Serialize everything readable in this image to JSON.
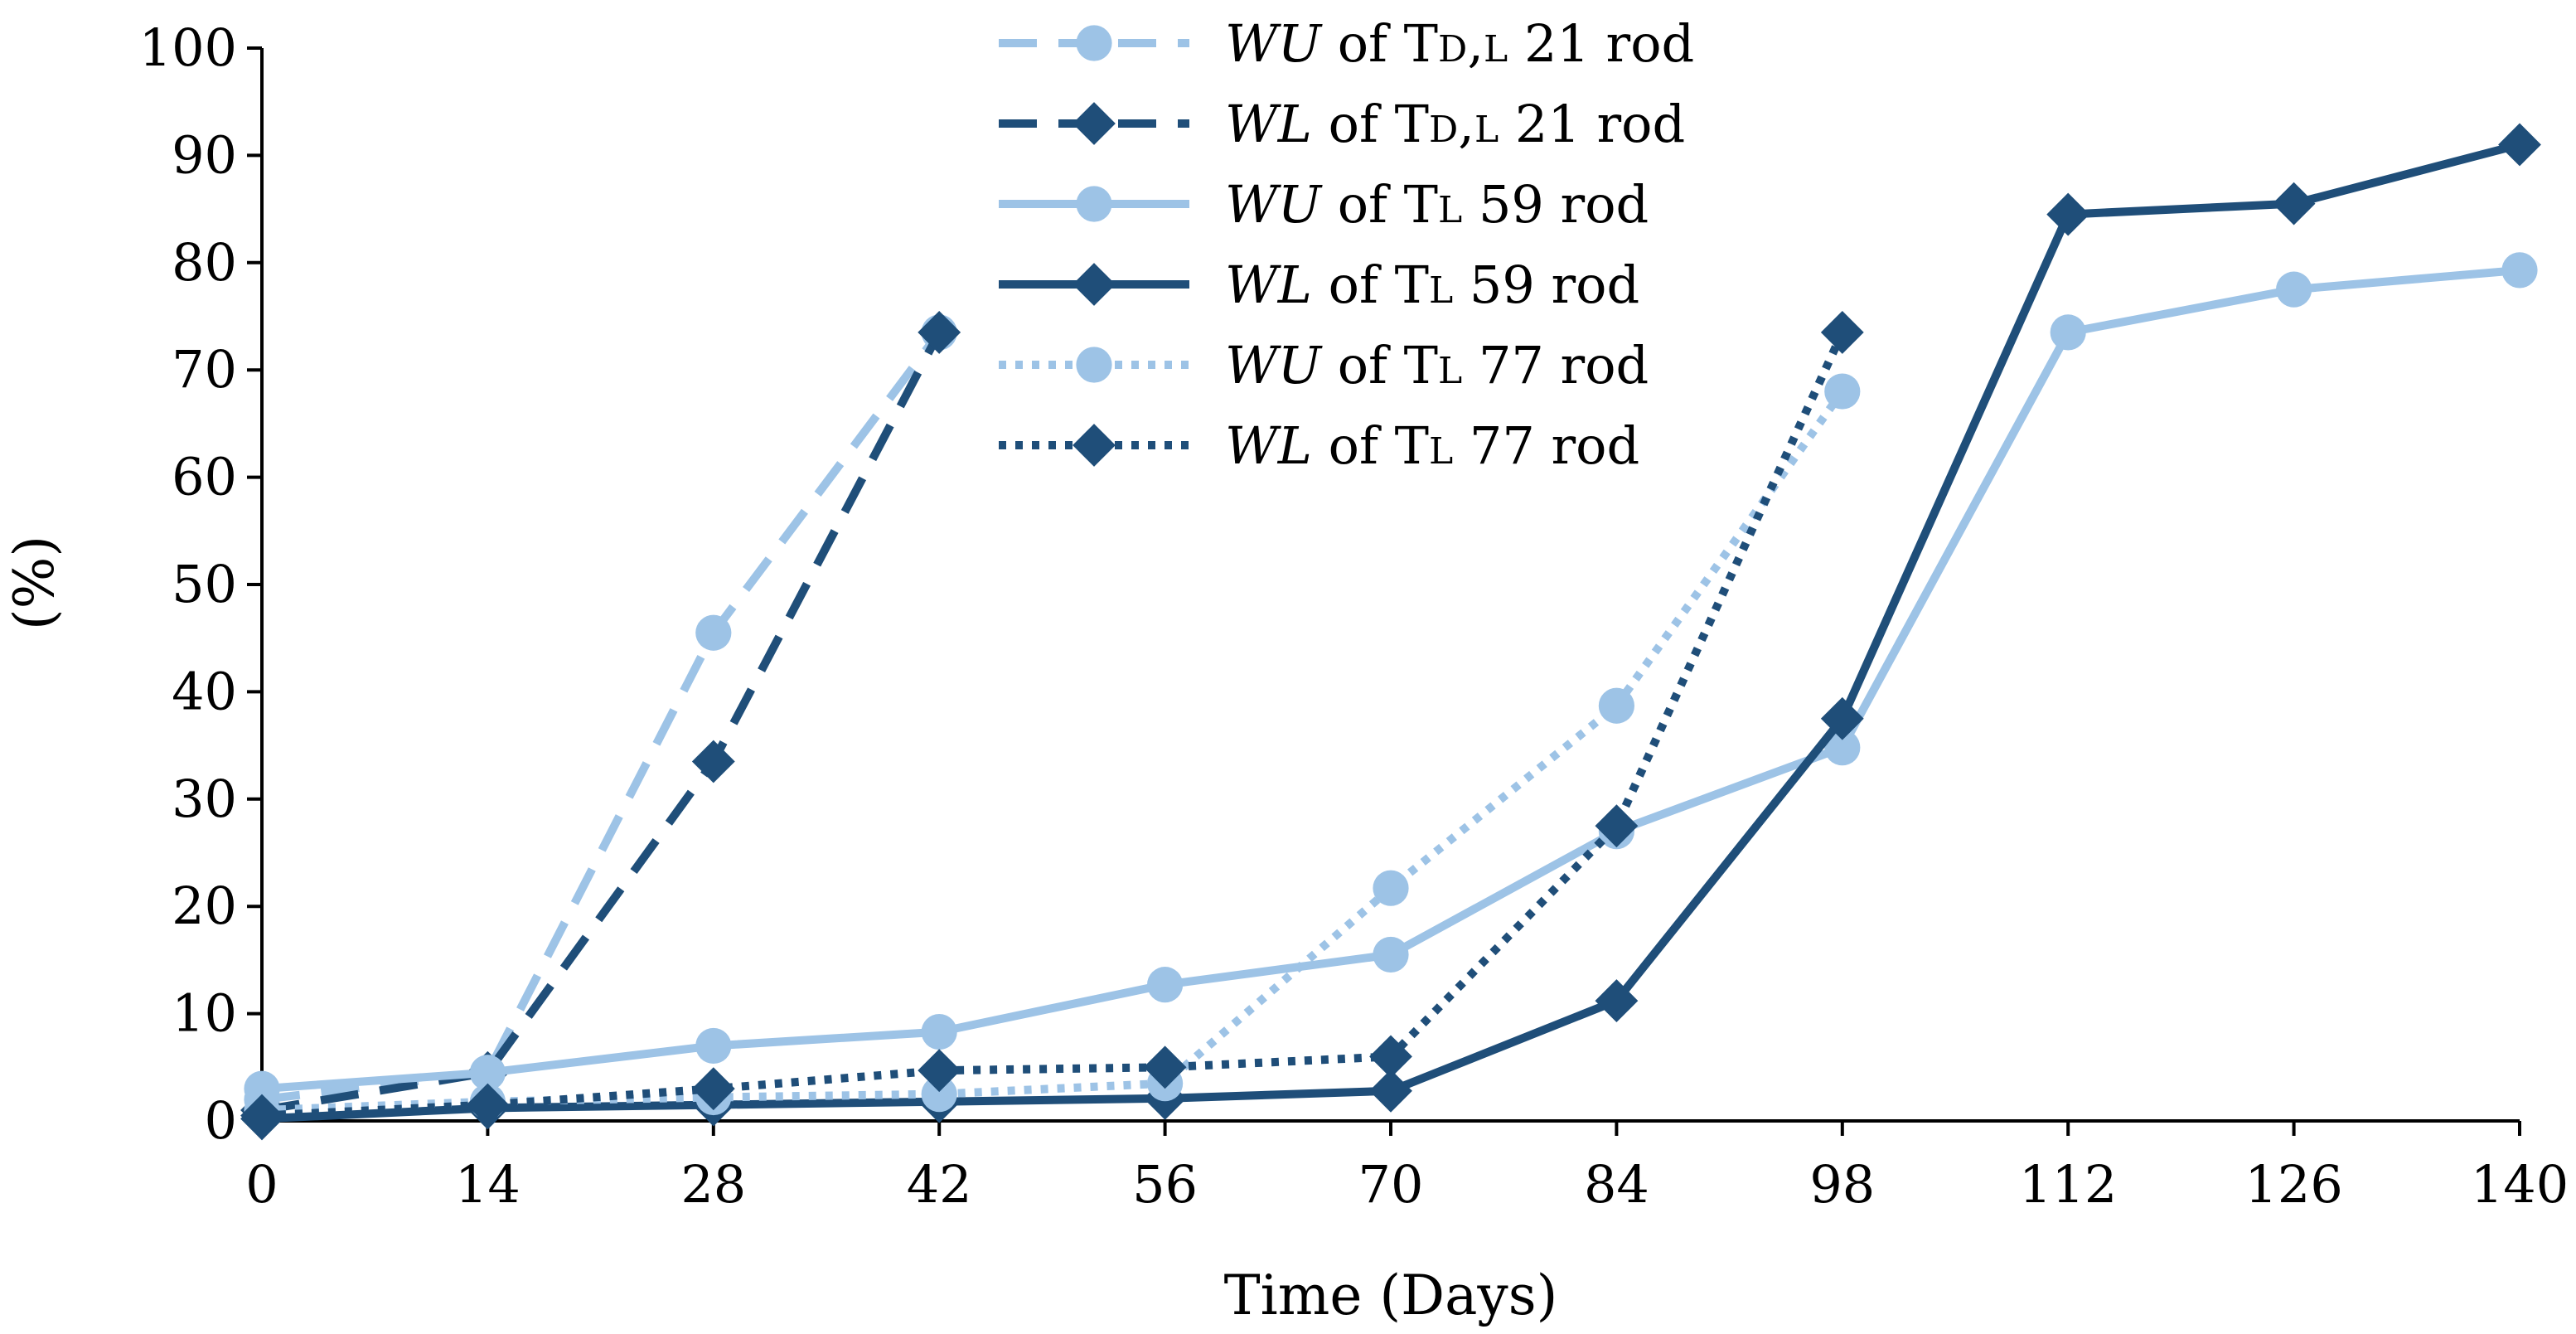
{
  "chart_data": {
    "type": "line",
    "title": "",
    "xlabel": "Time (Days)",
    "ylabel": "(%)",
    "xlim": [
      0,
      140
    ],
    "ylim": [
      0,
      100
    ],
    "xticks": [
      0,
      14,
      28,
      42,
      56,
      70,
      84,
      98,
      112,
      126,
      140
    ],
    "yticks": [
      0,
      10,
      20,
      30,
      40,
      50,
      60,
      70,
      80,
      90,
      100
    ],
    "grid": false,
    "legend_position": "top-center",
    "colors": {
      "light": "#9dc3e6",
      "dark": "#1f4e79"
    },
    "series": [
      {
        "key": "wu-td-l21",
        "legend": {
          "metric": "WU",
          "mid": " of T",
          "sub": "D",
          "sep": ",",
          "sub2": "L",
          "tail": " 21 rod"
        },
        "color": "light",
        "dash": "dashed",
        "marker": "circle",
        "x": [
          0,
          14,
          28,
          42
        ],
        "y": [
          2,
          4.5,
          45.5,
          73.5
        ]
      },
      {
        "key": "wl-td-l21",
        "legend": {
          "metric": "WL",
          "mid": " of T",
          "sub": "D",
          "sep": ",",
          "sub2": "L",
          "tail": " 21 rod"
        },
        "color": "dark",
        "dash": "dashed",
        "marker": "diamond",
        "x": [
          0,
          14,
          28,
          42
        ],
        "y": [
          1,
          4.5,
          33.5,
          73.5
        ]
      },
      {
        "key": "wu-tl59",
        "legend": {
          "metric": "WU",
          "mid": " of T",
          "sub": "L",
          "sep": "",
          "sub2": "",
          "tail": " 59 rod"
        },
        "color": "light",
        "dash": "solid",
        "marker": "circle",
        "x": [
          0,
          14,
          28,
          42,
          56,
          70,
          84,
          98,
          112,
          126,
          140
        ],
        "y": [
          3,
          4.5,
          7,
          8.3,
          12.7,
          15.5,
          27,
          34.8,
          73.5,
          77.5,
          79.3
        ]
      },
      {
        "key": "wl-tl59",
        "legend": {
          "metric": "WL",
          "mid": " of T",
          "sub": "L",
          "sep": "",
          "sub2": "",
          "tail": " 59 rod"
        },
        "color": "dark",
        "dash": "solid",
        "marker": "diamond",
        "x": [
          0,
          14,
          28,
          42,
          56,
          70,
          84,
          98,
          112,
          126,
          140
        ],
        "y": [
          0.2,
          1.2,
          1.5,
          1.8,
          2.1,
          2.8,
          11.2,
          37.5,
          84.5,
          85.5,
          91
        ]
      },
      {
        "key": "wu-tl77",
        "legend": {
          "metric": "WU",
          "mid": " of T",
          "sub": "L",
          "sep": "",
          "sub2": "",
          "tail": " 77 rod"
        },
        "color": "light",
        "dash": "dotted",
        "marker": "circle",
        "x": [
          0,
          14,
          28,
          42,
          56,
          70,
          84,
          98
        ],
        "y": [
          1,
          1.8,
          2.2,
          2.5,
          3.5,
          21.7,
          38.7,
          68
        ]
      },
      {
        "key": "wl-tl77",
        "legend": {
          "metric": "WL",
          "mid": " of T",
          "sub": "L",
          "sep": "",
          "sub2": "",
          "tail": " 77 rod"
        },
        "color": "dark",
        "dash": "dotted",
        "marker": "diamond",
        "x": [
          0,
          14,
          28,
          42,
          56,
          70,
          84,
          98
        ],
        "y": [
          0.5,
          1.5,
          3,
          4.7,
          5,
          6,
          27.5,
          73.5
        ]
      }
    ]
  }
}
